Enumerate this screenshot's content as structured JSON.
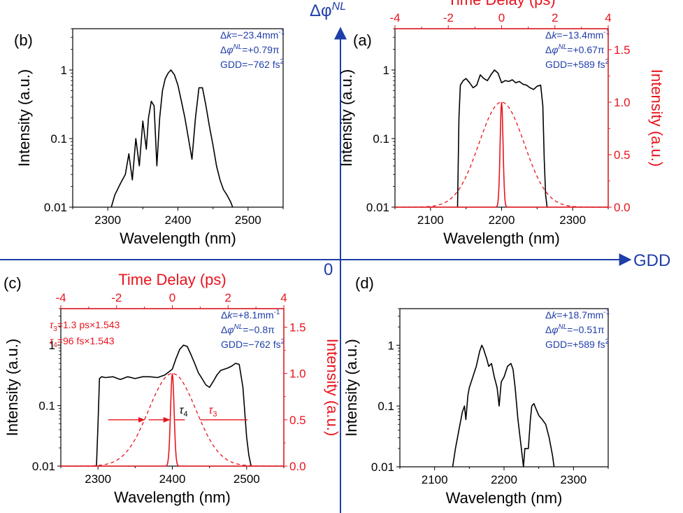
{
  "axes": {
    "y_label": "Δφ",
    "y_label_sup": "NL",
    "x_label": "GDD",
    "origin": "0"
  },
  "colors": {
    "black": "#000000",
    "red": "#e8141d",
    "blue": "#1f3ea8"
  },
  "chart_data": [
    {
      "panel": "(b)",
      "type": "line",
      "xlabel": "Wavelength (nm)",
      "ylabel": "Intensity (a.u.)",
      "xlim": [
        2250,
        2550
      ],
      "xticks": [
        2300,
        2400,
        2500
      ],
      "ylog": true,
      "ylim": [
        0.01,
        4
      ],
      "yticks": [
        0.01,
        0.1,
        1
      ],
      "ytick_labels": [
        "0.01",
        "0.1",
        "1"
      ],
      "annotations": [
        [
          "Δ",
          "k",
          "=−23.4mm",
          "-1",
          ""
        ],
        [
          "Δ",
          "φ",
          "",
          "NL",
          "=+0.79π"
        ],
        [
          "GDD=−762 fs",
          "",
          "",
          "2",
          ""
        ]
      ],
      "series": [
        {
          "x": [
            2305,
            2310,
            2318,
            2325,
            2330,
            2335,
            2340,
            2345,
            2350,
            2355,
            2358,
            2362,
            2366,
            2370,
            2374,
            2378,
            2382,
            2386,
            2390,
            2395,
            2400,
            2405,
            2410,
            2415,
            2420,
            2425,
            2430,
            2435,
            2440,
            2445,
            2450,
            2455,
            2460,
            2465,
            2470,
            2475,
            2478
          ],
          "y": [
            0.01,
            0.015,
            0.022,
            0.03,
            0.06,
            0.025,
            0.1,
            0.04,
            0.18,
            0.07,
            0.2,
            0.35,
            0.3,
            0.04,
            0.2,
            0.5,
            0.75,
            0.9,
            1.0,
            0.85,
            0.6,
            0.35,
            0.2,
            0.1,
            0.05,
            0.2,
            0.55,
            0.55,
            0.3,
            0.15,
            0.08,
            0.04,
            0.025,
            0.018,
            0.015,
            0.012,
            0.01
          ]
        }
      ]
    },
    {
      "panel": "(a)",
      "type": "line",
      "xlabel": "Wavelength (nm)",
      "ylabel": "Intensity (a.u.)",
      "xlim": [
        2050,
        2350
      ],
      "xticks": [
        2100,
        2200,
        2300
      ],
      "ylog": true,
      "ylim": [
        0.01,
        4
      ],
      "yticks": [
        0.01,
        0.1,
        1
      ],
      "ytick_labels": [
        "0.01",
        "0.1",
        "1"
      ],
      "top_axis": {
        "label": "Time Delay (ps)",
        "lim": [
          -4,
          4
        ],
        "ticks": [
          -4,
          -2,
          0,
          2,
          4
        ]
      },
      "right_axis": {
        "label": "Intensity (a.u.)",
        "lim": [
          0,
          1.7
        ],
        "ticks": [
          0.0,
          0.5,
          1.0,
          1.5
        ],
        "tick_labels": [
          "0.0",
          "0.5",
          "1.0",
          "1.5"
        ]
      },
      "annotations": [
        [
          "Δ",
          "k",
          "=−13.4mm",
          "-1",
          ""
        ],
        [
          "Δ",
          "φ",
          "",
          "NL",
          "=+0.67π"
        ],
        [
          "GDD=+589 fs",
          "",
          "",
          "2",
          ""
        ]
      ],
      "series": [
        {
          "x": [
            2138,
            2140,
            2142,
            2146,
            2150,
            2155,
            2160,
            2165,
            2170,
            2175,
            2180,
            2185,
            2190,
            2195,
            2200,
            2205,
            2210,
            2215,
            2220,
            2225,
            2230,
            2235,
            2240,
            2245,
            2250,
            2255,
            2258,
            2260,
            2262,
            2264
          ],
          "y": [
            0.01,
            0.2,
            0.6,
            0.7,
            0.75,
            0.65,
            0.55,
            0.6,
            0.85,
            0.75,
            0.7,
            0.85,
            1.0,
            0.9,
            0.65,
            0.7,
            0.68,
            0.72,
            0.65,
            0.68,
            0.62,
            0.6,
            0.55,
            0.52,
            0.58,
            0.6,
            0.3,
            0.05,
            0.015,
            0.01
          ]
        }
      ],
      "red_series": {
        "pulse_dashed": {
          "type": "gaussian",
          "peak": 1.0,
          "center_ps": 0,
          "fwhm_ps": 2.0
        },
        "pulse_solid": {
          "type": "gaussian",
          "peak": 1.0,
          "center_ps": 0,
          "fwhm_ps": 0.13
        }
      }
    },
    {
      "panel": "(c)",
      "type": "line",
      "xlabel": "Wavelength (nm)",
      "ylabel": "Intensity (a.u.)",
      "xlim": [
        2250,
        2550
      ],
      "xticks": [
        2300,
        2400,
        2500
      ],
      "ylog": true,
      "ylim": [
        0.01,
        4
      ],
      "yticks": [
        0.01,
        0.1,
        1
      ],
      "ytick_labels": [
        "0.01",
        "0.1",
        "1"
      ],
      "top_axis": {
        "label": "Time Delay (ps)",
        "lim": [
          -4,
          4
        ],
        "ticks": [
          -4,
          -2,
          0,
          2,
          4
        ]
      },
      "right_axis": {
        "label": "Intensity (a.u.)",
        "lim": [
          0,
          1.7
        ],
        "ticks": [
          0.0,
          0.5,
          1.0,
          1.5
        ],
        "tick_labels": [
          "0.0",
          "0.5",
          "1.0",
          "1.5"
        ]
      },
      "annotations": [
        [
          "Δ",
          "k",
          "=+8.1mm",
          "-1",
          ""
        ],
        [
          "Δ",
          "φ",
          "",
          "NL",
          "=−0.8π"
        ],
        [
          "GDD=−762 fs",
          "",
          "",
          "2",
          ""
        ]
      ],
      "tau_annotations": [
        {
          "sym": "τ",
          "sub": "3",
          "rest": "=1.3 ps×1.543"
        },
        {
          "sym": "τ",
          "sub": "4",
          "rest": "=96 fs×1.543"
        }
      ],
      "tau_markers": [
        {
          "sym": "τ",
          "sub": "4"
        },
        {
          "sym": "τ",
          "sub": "3"
        }
      ],
      "series": [
        {
          "x": [
            2298,
            2300,
            2302,
            2305,
            2310,
            2320,
            2330,
            2340,
            2350,
            2360,
            2370,
            2380,
            2390,
            2400,
            2405,
            2410,
            2415,
            2420,
            2425,
            2430,
            2435,
            2440,
            2445,
            2450,
            2455,
            2460,
            2465,
            2470,
            2475,
            2480,
            2485,
            2490,
            2495,
            2500,
            2503,
            2506
          ],
          "y": [
            0.01,
            0.05,
            0.28,
            0.3,
            0.29,
            0.3,
            0.27,
            0.3,
            0.28,
            0.3,
            0.3,
            0.29,
            0.32,
            0.4,
            0.6,
            0.85,
            1.0,
            0.95,
            0.7,
            0.5,
            0.35,
            0.28,
            0.22,
            0.2,
            0.25,
            0.32,
            0.38,
            0.4,
            0.42,
            0.45,
            0.5,
            0.48,
            0.2,
            0.03,
            0.015,
            0.01
          ]
        }
      ],
      "red_series": {
        "pulse_dashed": {
          "type": "gaussian",
          "peak": 1.0,
          "center_ps": 0,
          "fwhm_ps": 2.0
        },
        "pulse_solid": {
          "type": "gaussian",
          "peak": 1.0,
          "center_ps": 0,
          "fwhm_ps": 0.15
        }
      }
    },
    {
      "panel": "(d)",
      "type": "line",
      "xlabel": "Wavelength (nm)",
      "ylabel": "Intensity (a.u.)",
      "xlim": [
        2050,
        2350
      ],
      "xticks": [
        2100,
        2200,
        2300
      ],
      "ylog": true,
      "ylim": [
        0.01,
        4
      ],
      "yticks": [
        0.01,
        0.1,
        1
      ],
      "ytick_labels": [
        "0.01",
        "0.1",
        "1"
      ],
      "annotations": [
        [
          "Δ",
          "k",
          "=+18.7mm",
          "-1",
          ""
        ],
        [
          "Δ",
          "φ",
          "",
          "NL",
          "=−0.51π"
        ],
        [
          "GDD=+589 fs",
          "",
          "",
          "2",
          ""
        ]
      ],
      "series": [
        {
          "x": [
            2126,
            2130,
            2135,
            2140,
            2143,
            2145,
            2148,
            2150,
            2155,
            2160,
            2165,
            2168,
            2170,
            2175,
            2178,
            2182,
            2186,
            2190,
            2193,
            2196,
            2200,
            2205,
            2210,
            2213,
            2216,
            2220,
            2225,
            2228,
            2230,
            2233,
            2235,
            2238,
            2240,
            2243,
            2246,
            2250,
            2255,
            2260,
            2265,
            2270,
            2272
          ],
          "y": [
            0.01,
            0.02,
            0.04,
            0.08,
            0.1,
            0.06,
            0.15,
            0.2,
            0.3,
            0.45,
            0.8,
            1.0,
            0.9,
            0.6,
            0.45,
            0.5,
            0.3,
            0.2,
            0.1,
            0.25,
            0.3,
            0.45,
            0.5,
            0.4,
            0.2,
            0.06,
            0.02,
            0.01,
            0.02,
            0.02,
            0.02,
            0.06,
            0.1,
            0.11,
            0.09,
            0.07,
            0.06,
            0.05,
            0.03,
            0.015,
            0.01
          ]
        }
      ]
    }
  ]
}
